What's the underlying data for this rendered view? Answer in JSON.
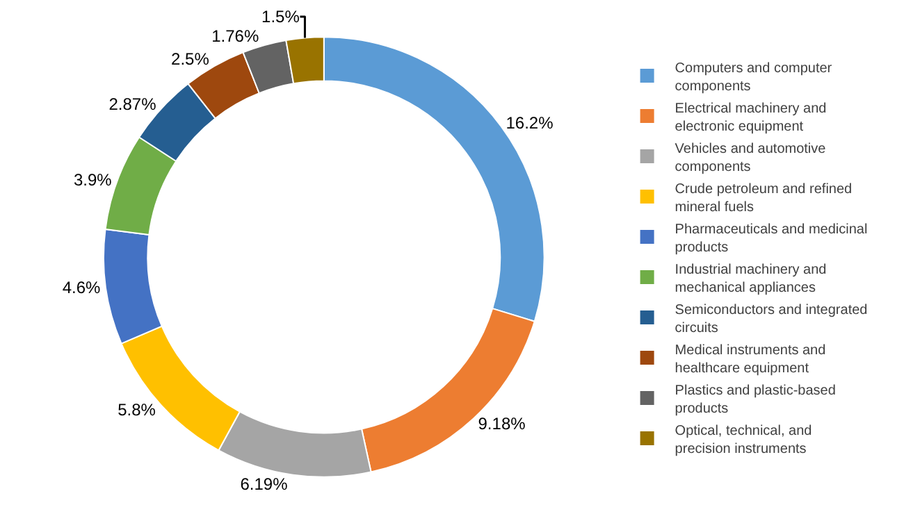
{
  "chart_data": {
    "type": "donut",
    "categories": [
      "Computers and computer components",
      "Electrical machinery and electronic equipment",
      "Vehicles and automotive components",
      "Crude petroleum and refined mineral fuels",
      "Pharmaceuticals and medicinal products",
      "Industrial machinery and mechanical appliances",
      "Semiconductors and integrated circuits",
      "Medical instruments and healthcare equipment",
      "Plastics and plastic-based products",
      "Optical, technical, and precision instruments"
    ],
    "values": [
      16.2,
      9.18,
      6.19,
      5.8,
      4.6,
      3.9,
      2.87,
      2.5,
      1.76,
      1.5
    ],
    "value_labels": [
      "16.2%",
      "9.18%",
      "6.19%",
      "5.8%",
      "4.6%",
      "3.9%",
      "2.87%",
      "2.5%",
      "1.76%",
      "1.5%"
    ],
    "colors": [
      "#5b9bd5",
      "#ed7d31",
      "#a5a5a5",
      "#ffc000",
      "#4472c4",
      "#70ad47",
      "#255e91",
      "#9e480e",
      "#636363",
      "#997300"
    ],
    "legend": "right"
  }
}
